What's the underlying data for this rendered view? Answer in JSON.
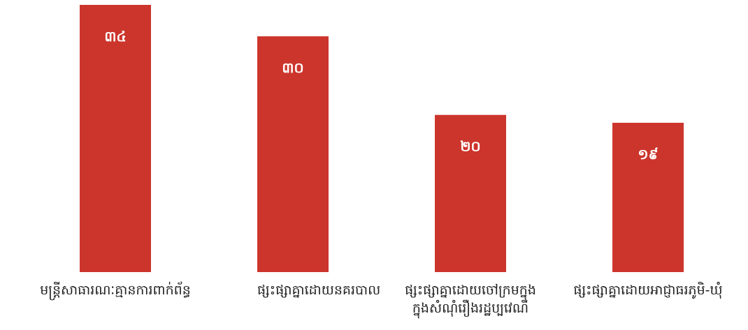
{
  "chart_data": {
    "type": "bar",
    "categories": [
      [
        "មន្ត្រីសាធារណៈគ្មានការពាក់ព័ន្ធ"
      ],
      [
        "ផ្សះផ្សាគ្នាដោយនគរបាល"
      ],
      [
        "ផ្សះផ្សាគ្នាដោយចៅក្រមក្នុង",
        "ក្នុងសំណុំរឿងរដ្ឋប្បវេណី"
      ],
      [
        "ផ្សះផ្សាគ្នាដោយអាជ្ញាធរភូមិ-ឃុំ"
      ]
    ],
    "values": [
      34,
      30,
      20,
      19
    ],
    "value_labels": [
      "៣៤",
      "៣០",
      "២០",
      "១៩"
    ],
    "title": "",
    "xlabel": "",
    "ylabel": "",
    "ylim": [
      0,
      34
    ],
    "grid": false,
    "legend": "none",
    "colors": {
      "bar": "#cc352c",
      "value_text": "#ffffff",
      "label_text": "#222222"
    }
  }
}
